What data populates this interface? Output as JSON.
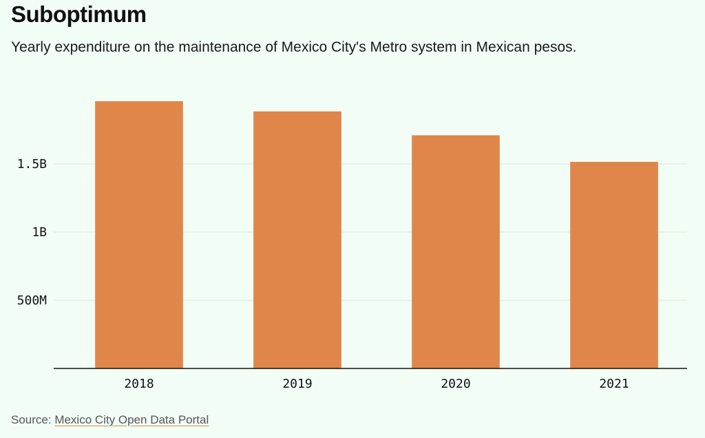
{
  "header": {
    "title": "Suboptimum",
    "subtitle": "Yearly expenditure on the maintenance of Mexico City's Metro system in Mexican pesos."
  },
  "chart_data": {
    "type": "bar",
    "title": "Suboptimum",
    "subtitle": "Yearly expenditure on the maintenance of Mexico City's Metro system in Mexican pesos.",
    "categories": [
      "2018",
      "2019",
      "2020",
      "2021"
    ],
    "values": [
      1960000000,
      1885000000,
      1710000000,
      1515000000
    ],
    "ylim": [
      0,
      2000000000
    ],
    "yticks": [
      {
        "value": 500000000,
        "label": "500M"
      },
      {
        "value": 1000000000,
        "label": "1B"
      },
      {
        "value": 1500000000,
        "label": "1.5B"
      }
    ],
    "grid": true,
    "bar_color": "#e0864a",
    "gridline_color": "#dde3df",
    "axis_color": "#111111"
  },
  "footer": {
    "source_prefix": "Source: ",
    "source_link": "Mexico City Open Data Portal"
  }
}
